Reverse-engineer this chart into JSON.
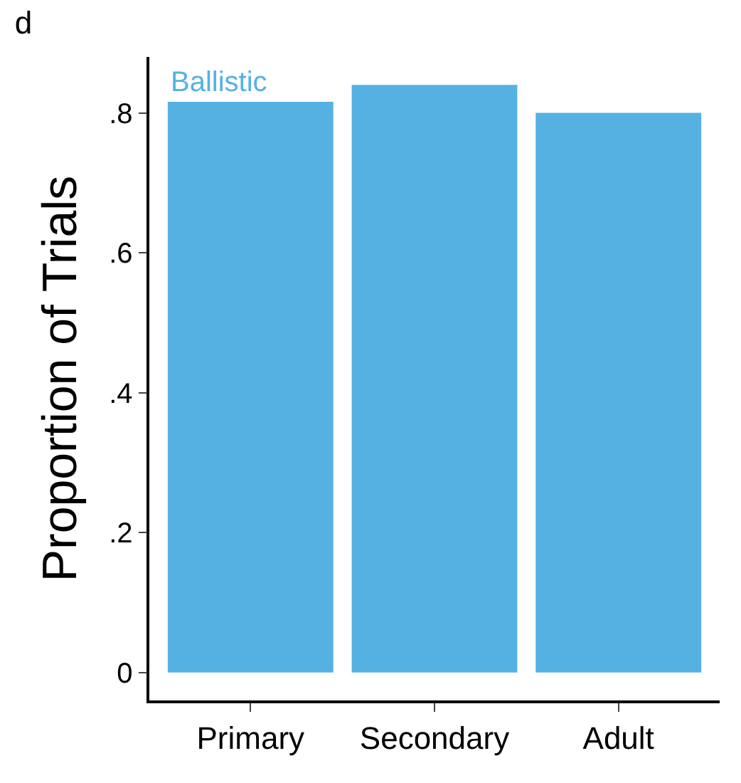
{
  "chart_data": {
    "type": "bar",
    "title": "d",
    "ylabel": "Proportion of Trials",
    "categories": [
      "Primary",
      "Secondary",
      "Adult"
    ],
    "series": [
      {
        "name": "Ballistic",
        "color": "#56b1e3",
        "values": [
          0.816,
          0.84,
          0.8
        ]
      }
    ],
    "ylim": [
      -0.04,
      0.88
    ],
    "yticks": [
      {
        "value": 0,
        "label": "0"
      },
      {
        "value": 0.2,
        "label": ".2"
      },
      {
        "value": 0.4,
        "label": ".4"
      },
      {
        "value": 0.6,
        "label": ".6"
      },
      {
        "value": 0.8,
        "label": ".8"
      }
    ],
    "legend": false
  }
}
